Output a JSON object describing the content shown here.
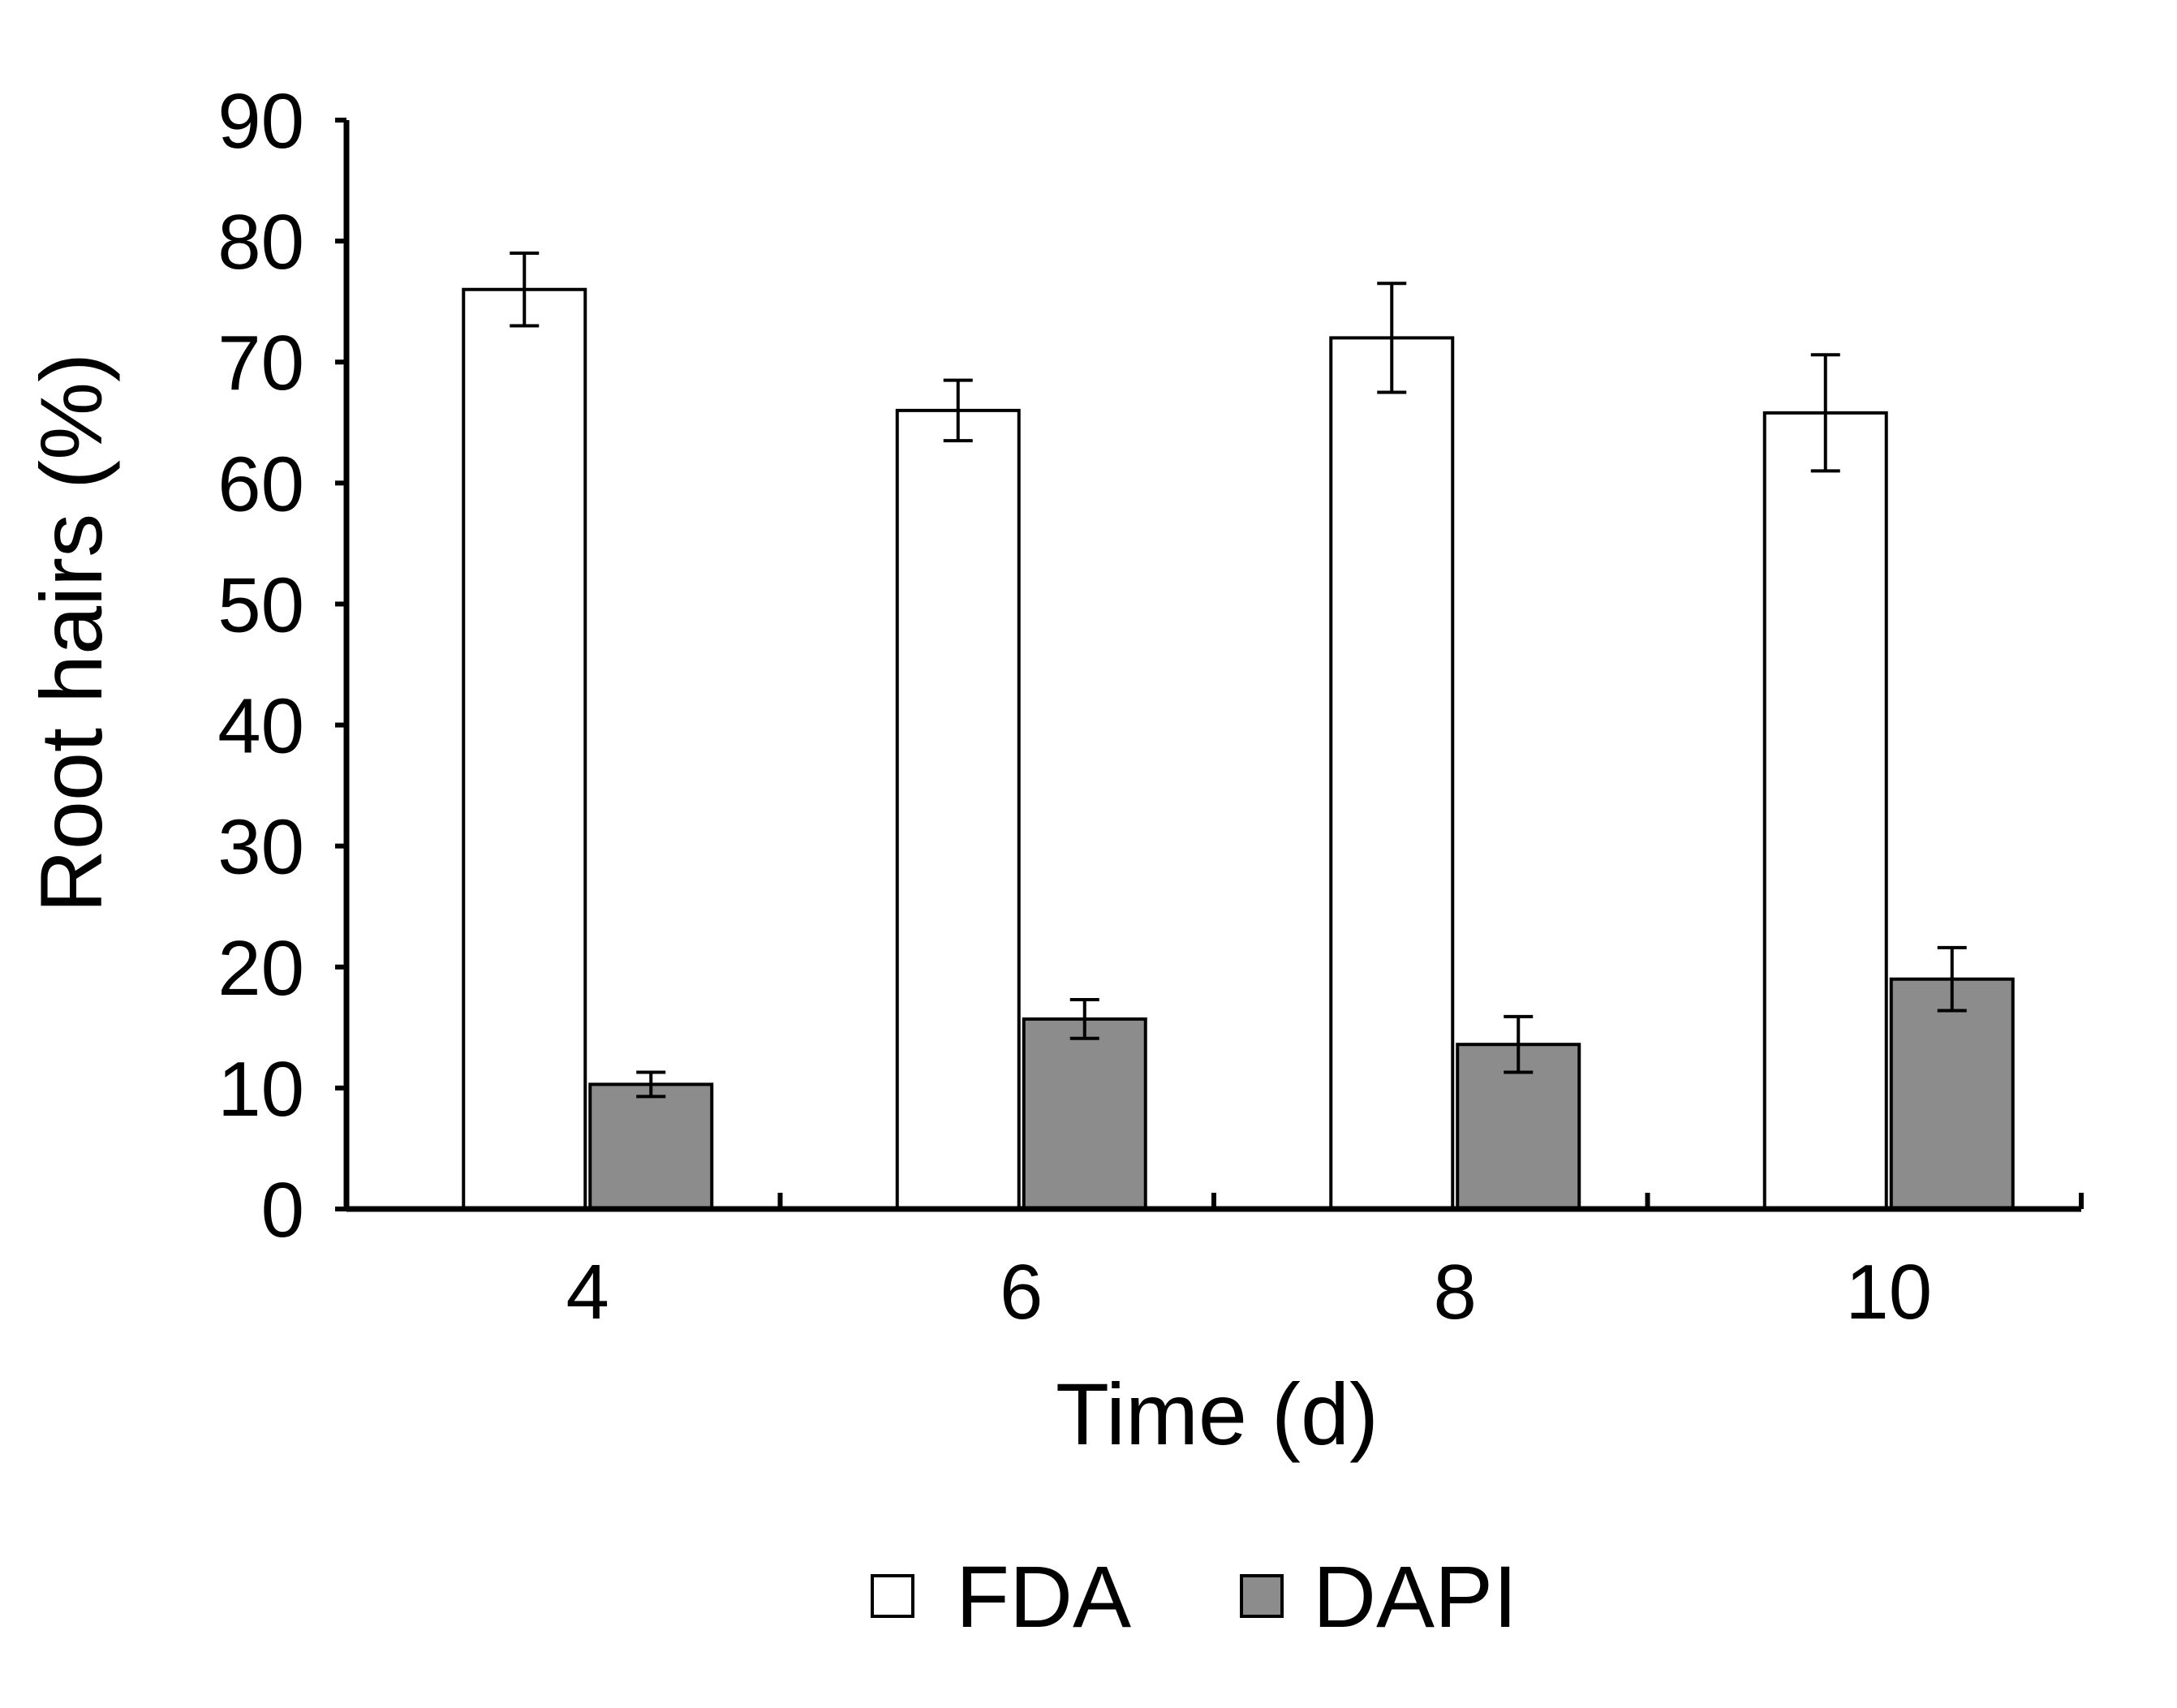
{
  "chart_data": {
    "type": "bar",
    "title": "",
    "xlabel": "Time (d)",
    "ylabel": "Root hairs (%)",
    "categories": [
      "4",
      "6",
      "8",
      "10"
    ],
    "ylim": [
      0,
      90
    ],
    "yticks": [
      "0",
      "10",
      "20",
      "30",
      "40",
      "50",
      "60",
      "70",
      "80",
      "90"
    ],
    "grid": false,
    "legend_position": "bottom-center",
    "series": [
      {
        "name": "FDA",
        "color": "#ffffff",
        "values": [
          76,
          66,
          72,
          65.8
        ],
        "errors": [
          3,
          2.5,
          4.5,
          4.8
        ]
      },
      {
        "name": "DAPI",
        "color": "#8c8c8c",
        "values": [
          10.3,
          15.7,
          13.6,
          19
        ],
        "errors": [
          1,
          1.6,
          2.3,
          2.6
        ]
      }
    ]
  }
}
